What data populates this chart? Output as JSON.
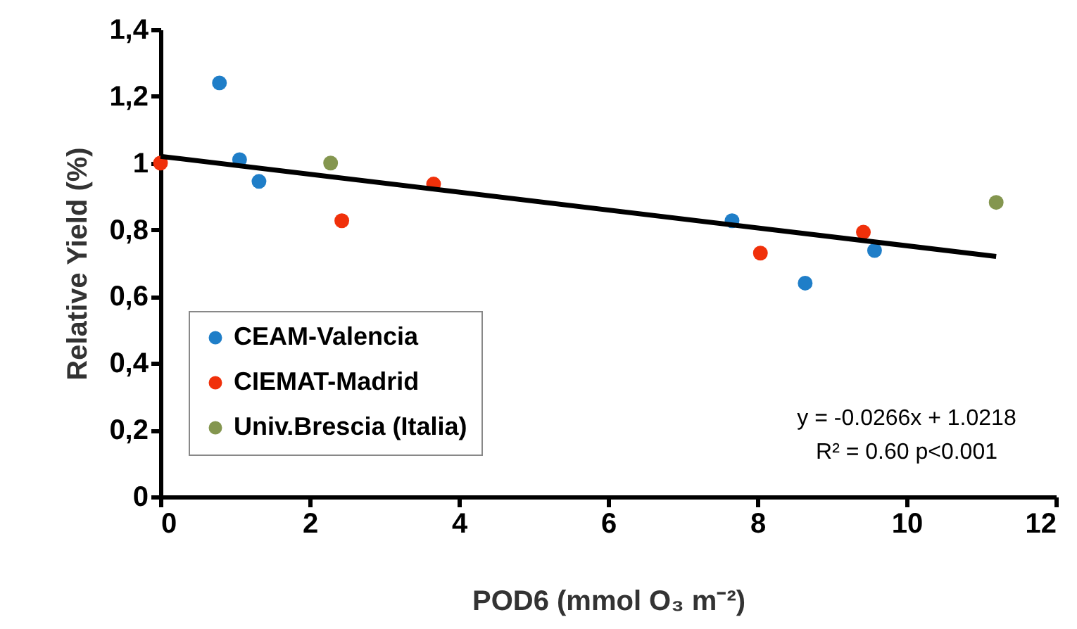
{
  "chart_data": {
    "type": "scatter",
    "xlabel": "POD6 (mmol O₃ m⁻²)",
    "ylabel": "Relative Yield (%)",
    "xlim": [
      0,
      12
    ],
    "xticks": [
      0,
      2,
      4,
      6,
      8,
      10,
      12
    ],
    "ylim": [
      0,
      1.4
    ],
    "yticks": [
      0,
      {
        "value": 0.2,
        "label": "0,2"
      },
      {
        "value": 0.4,
        "label": "0,4"
      },
      {
        "value": 0.6,
        "label": "0,6"
      },
      {
        "value": 0.8,
        "label": "0,8"
      },
      1,
      {
        "value": 1.2,
        "label": "1,2"
      },
      {
        "value": 1.4,
        "label": "1,4"
      }
    ],
    "grid": false,
    "legend": "bottom left",
    "marker": "circle",
    "series": [
      {
        "name": "CEAM-Valencia",
        "color": "#1f7ec8",
        "x": [
          0.79,
          1.06,
          1.32,
          7.66,
          8.64,
          9.57
        ],
        "values": [
          1.24,
          1.01,
          0.945,
          0.827,
          0.64,
          0.738
        ]
      },
      {
        "name": "CIEMAT-Madrid",
        "color": "#f0300a",
        "x": [
          0,
          2.43,
          3.66,
          8.04,
          9.42
        ],
        "values": [
          1.0,
          0.827,
          0.937,
          0.73,
          0.793
        ]
      },
      {
        "name": "Univ.Brescia (Italia)",
        "color": "#84964f",
        "x": [
          2.28,
          11.2
        ],
        "values": [
          1.0,
          0.882
        ]
      },
      {
        "type": "line",
        "color": "#000000",
        "x": [
          0,
          11.2
        ],
        "values": [
          1.02,
          0.72
        ],
        "line_style": "solid",
        "marker": "none"
      }
    ],
    "annotations": [
      "y = -0.0266x + 1.0218",
      "R² = 0.60   p<0.001"
    ]
  }
}
